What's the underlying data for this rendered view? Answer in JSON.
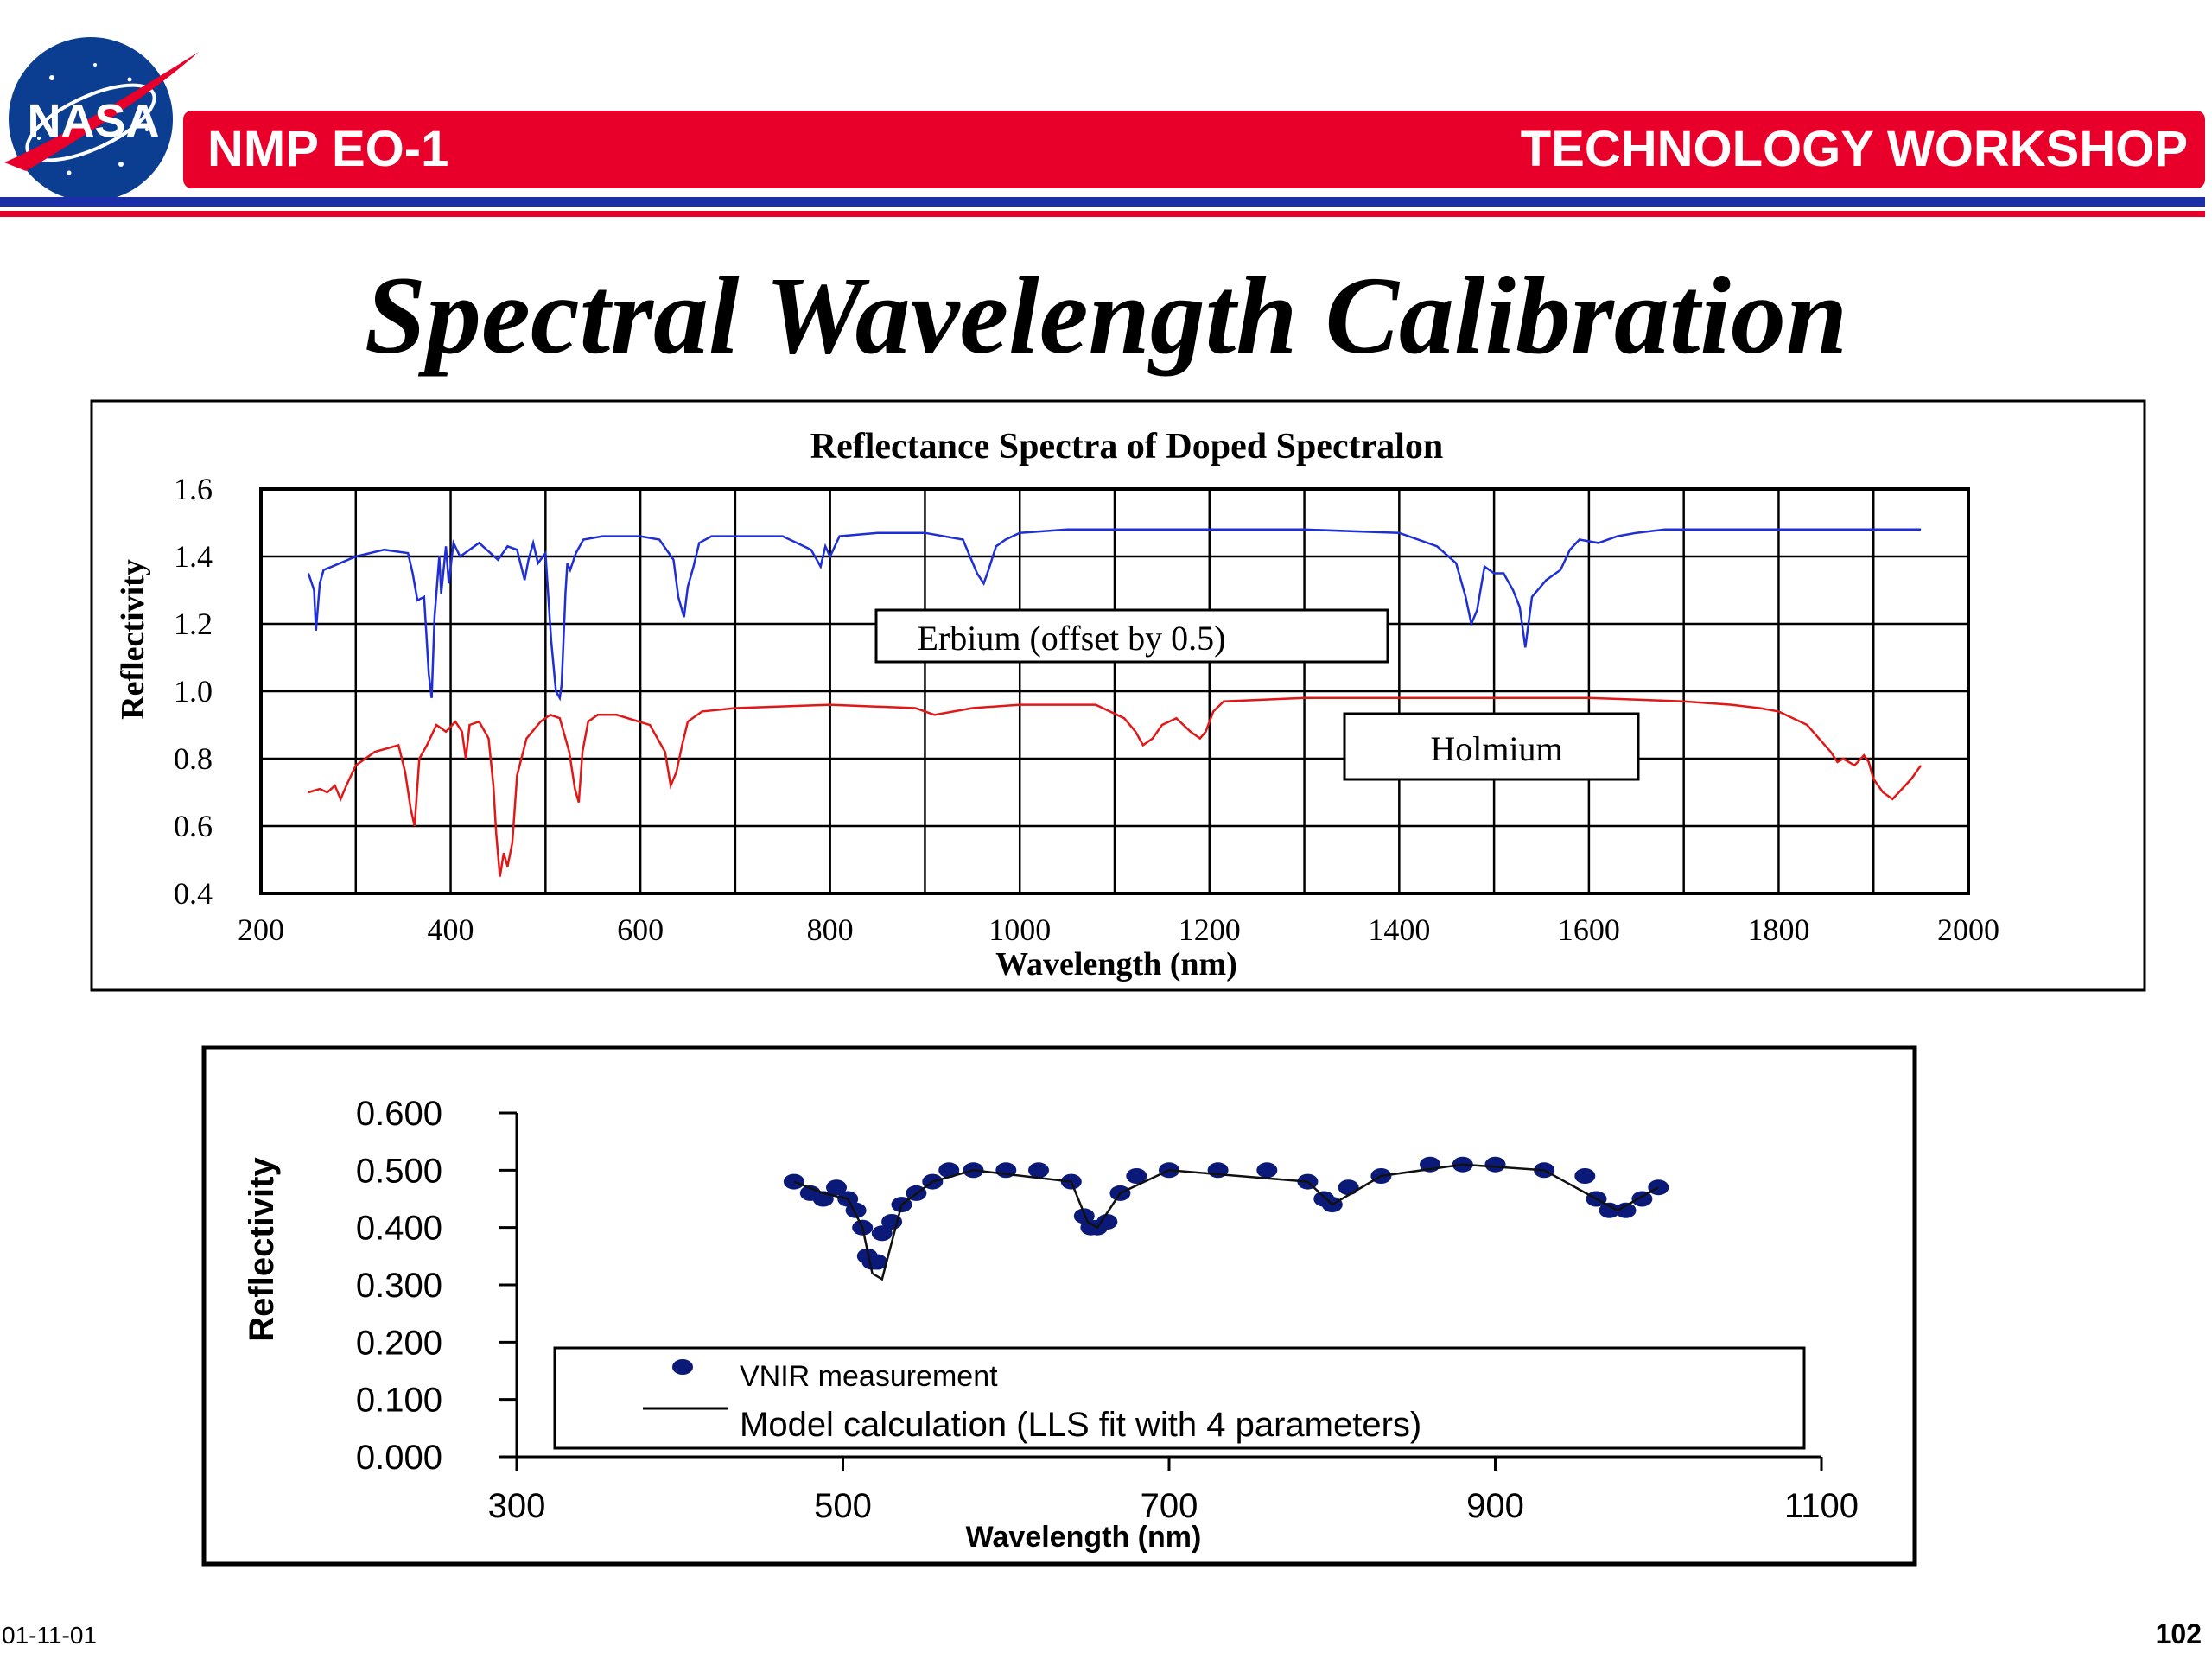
{
  "header": {
    "logo_text": "NASA",
    "left_title": "NMP EO-1",
    "right_title": "TECHNOLOGY WORKSHOP"
  },
  "slide": {
    "title": "Spectral Wavelength Calibration"
  },
  "footer": {
    "date": "01-11-01",
    "page": "102"
  },
  "colors": {
    "banner_red": "#e8002a",
    "rule_blue": "#1b2fa8",
    "erbium": "#1f2fd6",
    "holmium": "#e01818",
    "vnir": "#0b1a78"
  },
  "chart_data": [
    {
      "type": "line",
      "title": "Reflectance Spectra of Doped Spectralon",
      "xlabel": "Wavelength (nm)",
      "ylabel": "Reflectivity",
      "xlim": [
        200,
        2000
      ],
      "ylim": [
        0.4,
        1.6
      ],
      "xticks": [
        "200",
        "400",
        "600",
        "800",
        "1000",
        "1200",
        "1400",
        "1600",
        "1800",
        "2000"
      ],
      "yticks": [
        "0.4",
        "0.6",
        "0.8",
        "1.0",
        "1.2",
        "1.4",
        "1.6"
      ],
      "grid": true,
      "annotations": [
        "Erbium (offset by 0.5)",
        "Holmium"
      ],
      "series": [
        {
          "name": "Erbium (offset by 0.5)",
          "x": [
            250,
            256,
            258,
            262,
            266,
            275,
            300,
            330,
            355,
            360,
            365,
            372,
            377,
            380,
            383,
            388,
            390,
            395,
            398,
            403,
            410,
            430,
            450,
            460,
            470,
            478,
            482,
            487,
            492,
            500,
            506,
            511,
            515,
            517,
            521,
            523,
            526,
            532,
            540,
            560,
            580,
            600,
            620,
            635,
            640,
            646,
            650,
            656,
            662,
            675,
            700,
            750,
            780,
            790,
            795,
            800,
            810,
            850,
            900,
            940,
            955,
            962,
            967,
            975,
            985,
            1000,
            1050,
            1100,
            1200,
            1300,
            1400,
            1440,
            1460,
            1470,
            1476,
            1482,
            1490,
            1500,
            1510,
            1520,
            1527,
            1533,
            1540,
            1555,
            1570,
            1580,
            1590,
            1610,
            1630,
            1650,
            1680,
            1700,
            1750,
            1800,
            1850,
            1900,
            1950
          ],
          "y": [
            1.35,
            1.3,
            1.18,
            1.32,
            1.36,
            1.37,
            1.4,
            1.42,
            1.41,
            1.35,
            1.27,
            1.28,
            1.05,
            0.98,
            1.22,
            1.4,
            1.29,
            1.43,
            1.32,
            1.44,
            1.4,
            1.44,
            1.39,
            1.43,
            1.42,
            1.33,
            1.39,
            1.44,
            1.38,
            1.41,
            1.15,
            1.0,
            0.98,
            1.02,
            1.29,
            1.38,
            1.36,
            1.41,
            1.45,
            1.46,
            1.46,
            1.46,
            1.45,
            1.39,
            1.28,
            1.22,
            1.31,
            1.37,
            1.44,
            1.46,
            1.46,
            1.46,
            1.42,
            1.37,
            1.43,
            1.4,
            1.46,
            1.47,
            1.47,
            1.45,
            1.35,
            1.32,
            1.36,
            1.43,
            1.45,
            1.47,
            1.48,
            1.48,
            1.48,
            1.48,
            1.47,
            1.43,
            1.38,
            1.28,
            1.2,
            1.24,
            1.37,
            1.35,
            1.35,
            1.3,
            1.25,
            1.13,
            1.28,
            1.33,
            1.36,
            1.42,
            1.45,
            1.44,
            1.46,
            1.47,
            1.48,
            1.48,
            1.48,
            1.48,
            1.48,
            1.48,
            1.48
          ]
        },
        {
          "name": "Holmium",
          "x": [
            250,
            262,
            270,
            278,
            284,
            290,
            300,
            320,
            345,
            352,
            358,
            362,
            367,
            375,
            385,
            395,
            405,
            412,
            416,
            420,
            430,
            440,
            445,
            448,
            452,
            456,
            460,
            465,
            470,
            480,
            495,
            505,
            515,
            525,
            531,
            535,
            539,
            545,
            555,
            575,
            610,
            626,
            632,
            638,
            644,
            650,
            665,
            700,
            800,
            890,
            910,
            950,
            1000,
            1080,
            1110,
            1122,
            1130,
            1140,
            1150,
            1165,
            1180,
            1190,
            1196,
            1204,
            1215,
            1300,
            1500,
            1600,
            1700,
            1750,
            1780,
            1800,
            1830,
            1855,
            1862,
            1868,
            1880,
            1890,
            1895,
            1900,
            1910,
            1920,
            1930,
            1940,
            1950
          ],
          "y": [
            0.7,
            0.71,
            0.7,
            0.72,
            0.68,
            0.72,
            0.78,
            0.82,
            0.84,
            0.76,
            0.65,
            0.6,
            0.8,
            0.84,
            0.9,
            0.88,
            0.91,
            0.88,
            0.8,
            0.9,
            0.91,
            0.86,
            0.72,
            0.58,
            0.45,
            0.52,
            0.48,
            0.55,
            0.75,
            0.86,
            0.91,
            0.93,
            0.92,
            0.82,
            0.71,
            0.67,
            0.82,
            0.91,
            0.93,
            0.93,
            0.9,
            0.82,
            0.72,
            0.76,
            0.84,
            0.91,
            0.94,
            0.95,
            0.96,
            0.95,
            0.93,
            0.95,
            0.96,
            0.96,
            0.92,
            0.88,
            0.84,
            0.86,
            0.9,
            0.92,
            0.88,
            0.86,
            0.88,
            0.94,
            0.97,
            0.98,
            0.98,
            0.98,
            0.97,
            0.96,
            0.95,
            0.94,
            0.9,
            0.82,
            0.79,
            0.8,
            0.78,
            0.81,
            0.79,
            0.74,
            0.7,
            0.68,
            0.71,
            0.74,
            0.78
          ]
        }
      ]
    },
    {
      "type": "scatter",
      "xlabel": "Wavelength (nm)",
      "ylabel": "Reflectivity",
      "xlim": [
        300,
        1100
      ],
      "ylim": [
        0.0,
        0.6
      ],
      "xticks": [
        "300",
        "500",
        "700",
        "900",
        "1100"
      ],
      "yticks": [
        "0.000",
        "0.100",
        "0.200",
        "0.300",
        "0.400",
        "0.500",
        "0.600"
      ],
      "grid": false,
      "legend": {
        "placement": "bottom-inside",
        "entries": [
          "VNIR measurement",
          "Model calculation (LLS fit with 4 parameters)"
        ]
      },
      "series": [
        {
          "name": "VNIR measurement",
          "x": [
            470,
            480,
            488,
            496,
            503,
            508,
            512,
            515,
            518,
            521,
            524,
            530,
            536,
            545,
            555,
            565,
            580,
            600,
            620,
            640,
            648,
            652,
            656,
            662,
            670,
            680,
            700,
            730,
            760,
            785,
            795,
            800,
            810,
            830,
            860,
            880,
            900,
            930,
            955,
            962,
            970,
            980,
            990,
            1000
          ],
          "x_note_removed": null,
          "y": [
            0.48,
            0.46,
            0.45,
            0.47,
            0.45,
            0.43,
            0.4,
            0.35,
            0.34,
            0.34,
            0.39,
            0.41,
            0.44,
            0.46,
            0.48,
            0.5,
            0.5,
            0.5,
            0.5,
            0.48,
            0.42,
            0.4,
            0.4,
            0.41,
            0.46,
            0.49,
            0.5,
            0.5,
            0.5,
            0.48,
            0.45,
            0.44,
            0.47,
            0.49,
            0.51,
            0.51,
            0.51,
            0.5,
            0.49,
            0.45,
            0.43,
            0.43,
            0.45,
            0.47
          ]
        },
        {
          "name": "Model calculation (LLS fit with 4 parameters)",
          "x": [
            470,
            488,
            503,
            512,
            518,
            524,
            536,
            555,
            580,
            640,
            650,
            656,
            670,
            700,
            785,
            800,
            830,
            880,
            930,
            962,
            975,
            1000
          ],
          "y": [
            0.48,
            0.46,
            0.45,
            0.4,
            0.32,
            0.31,
            0.44,
            0.48,
            0.5,
            0.48,
            0.41,
            0.4,
            0.46,
            0.5,
            0.48,
            0.44,
            0.49,
            0.51,
            0.5,
            0.45,
            0.43,
            0.47
          ]
        }
      ]
    }
  ]
}
